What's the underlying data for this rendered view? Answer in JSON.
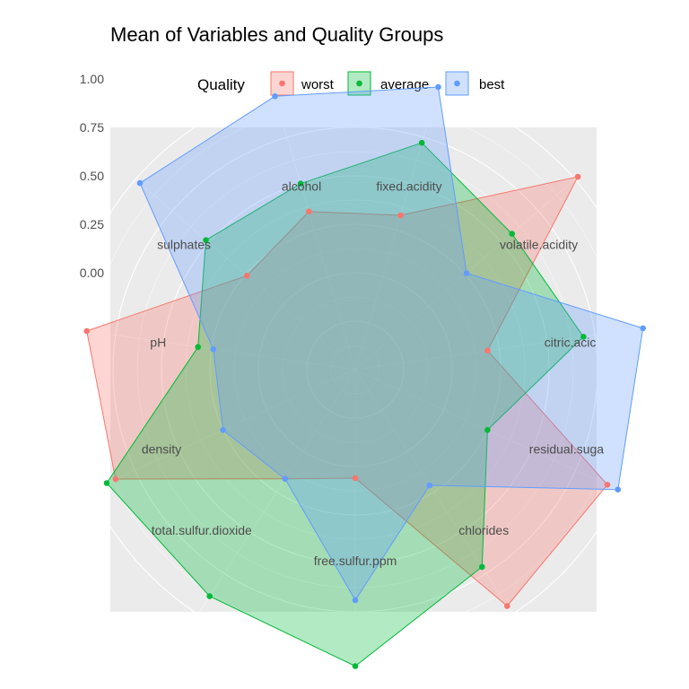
{
  "chart_data": {
    "type": "radar",
    "title": "Mean of Variables and Quality Groups",
    "legend_title": "Quality",
    "legend_position": "top",
    "categories": [
      "fixed.acidity",
      "volatile.acidity",
      "citric.acid",
      "residual.sugar",
      "chlorides",
      "free.sulfur.ppm",
      "total.sulfur.dioxide",
      "density",
      "pH",
      "sulphates",
      "alcohol"
    ],
    "category_labels": [
      "fixed.acidity",
      "volatile.acidity",
      "citric.acic",
      "residual.suga",
      "chlorides",
      "free.sulfur.ppm",
      "total.sulfur.dioxide",
      "density",
      "pH",
      "sulphates",
      "alcohol"
    ],
    "ylim": [
      -0.5,
      1.0
    ],
    "y_ticks": [
      1.0,
      0.75,
      0.5,
      0.25,
      0.0
    ],
    "y_tick_labels": [
      "1.00",
      "0.75",
      "0.50",
      "0.25",
      "0.00"
    ],
    "grid": true,
    "series": [
      {
        "name": "worst",
        "color": "#F8766D",
        "values": [
          0.33,
          1.02,
          0.19,
          0.93,
          0.95,
          0.06,
          0.17,
          0.86,
          0.9,
          0.24,
          0.35
        ]
      },
      {
        "name": "average",
        "color": "#00BA38",
        "values": [
          0.72,
          0.57,
          0.69,
          0.25,
          0.71,
          1.03,
          0.89,
          0.91,
          0.32,
          0.52,
          0.5
        ]
      },
      {
        "name": "best",
        "color": "#619CFF",
        "values": [
          1.02,
          0.26,
          1.0,
          0.99,
          0.21,
          0.69,
          0.17,
          0.25,
          0.24,
          0.97,
          0.97
        ]
      }
    ]
  }
}
